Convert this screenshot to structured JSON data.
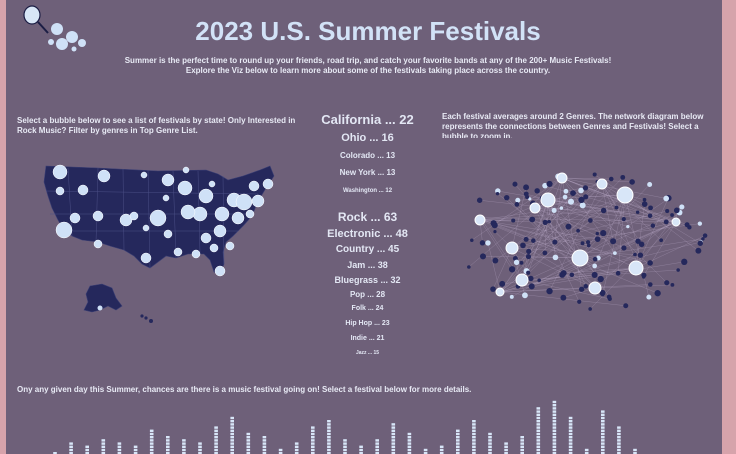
{
  "header": {
    "title": "2023 U.S. Summer Festivals",
    "subtitle_line1": "Summer is the perfect time to round up your friends, road trip, and catch your favorite bands at any of the 200+ Music Festivals!",
    "subtitle_line2": "Explore the Viz below to learn more about some of the festivals taking place across the country."
  },
  "map_section": {
    "intro": "Select a bubble below to see a list of festivals by state! Only Interested in Rock Music? Filter by genres in Top Genre List."
  },
  "network_section": {
    "intro": "Each festival averages around 2 Genres. The network diagram below represents the connections between Genres and Festivals! Select a bubble to zoom in."
  },
  "top_states": [
    {
      "label": "California ... 22"
    },
    {
      "label": "Ohio ... 16"
    },
    {
      "label": "Colorado ... 13"
    },
    {
      "label": "New York ... 13"
    },
    {
      "label": "Washington ... 12"
    }
  ],
  "top_genres": [
    {
      "label": "Rock ... 63"
    },
    {
      "label": "Electronic ... 48"
    },
    {
      "label": "Country ... 45"
    },
    {
      "label": "Jam ... 38"
    },
    {
      "label": "Bluegrass ... 32"
    },
    {
      "label": "Pop ... 28"
    },
    {
      "label": "Folk ... 24"
    },
    {
      "label": "Hip Hop ... 23"
    },
    {
      "label": "Indie ... 21"
    },
    {
      "label": "Jazz ... 15"
    }
  ],
  "daily_section": {
    "intro": "Ony any given day this Summer, chances are there is a music festival going on! Select a festival below for more details.",
    "columns": [
      {
        "count": 1
      },
      {
        "count": 4
      },
      {
        "count": 3
      },
      {
        "count": 5
      },
      {
        "count": 4
      },
      {
        "count": 3
      },
      {
        "count": 8
      },
      {
        "count": 6
      },
      {
        "count": 5
      },
      {
        "count": 4
      },
      {
        "count": 9
      },
      {
        "count": 12
      },
      {
        "count": 7
      },
      {
        "count": 6
      },
      {
        "count": 2
      },
      {
        "count": 4
      },
      {
        "count": 9
      },
      {
        "count": 11
      },
      {
        "count": 5
      },
      {
        "count": 3
      },
      {
        "count": 5
      },
      {
        "count": 10
      },
      {
        "count": 7
      },
      {
        "count": 2
      },
      {
        "count": 3
      },
      {
        "count": 8
      },
      {
        "count": 11
      },
      {
        "count": 7
      },
      {
        "count": 4
      },
      {
        "count": 6
      },
      {
        "count": 15
      },
      {
        "count": 18
      },
      {
        "count": 12
      },
      {
        "count": 2
      },
      {
        "count": 14
      },
      {
        "count": 9
      },
      {
        "count": 2
      }
    ]
  },
  "colors": {
    "background": "#6e6079",
    "accent": "#d6a3ab",
    "map_fill": "#25285c",
    "bubble": "#cfe1f7",
    "node_dark": "#25285c"
  }
}
